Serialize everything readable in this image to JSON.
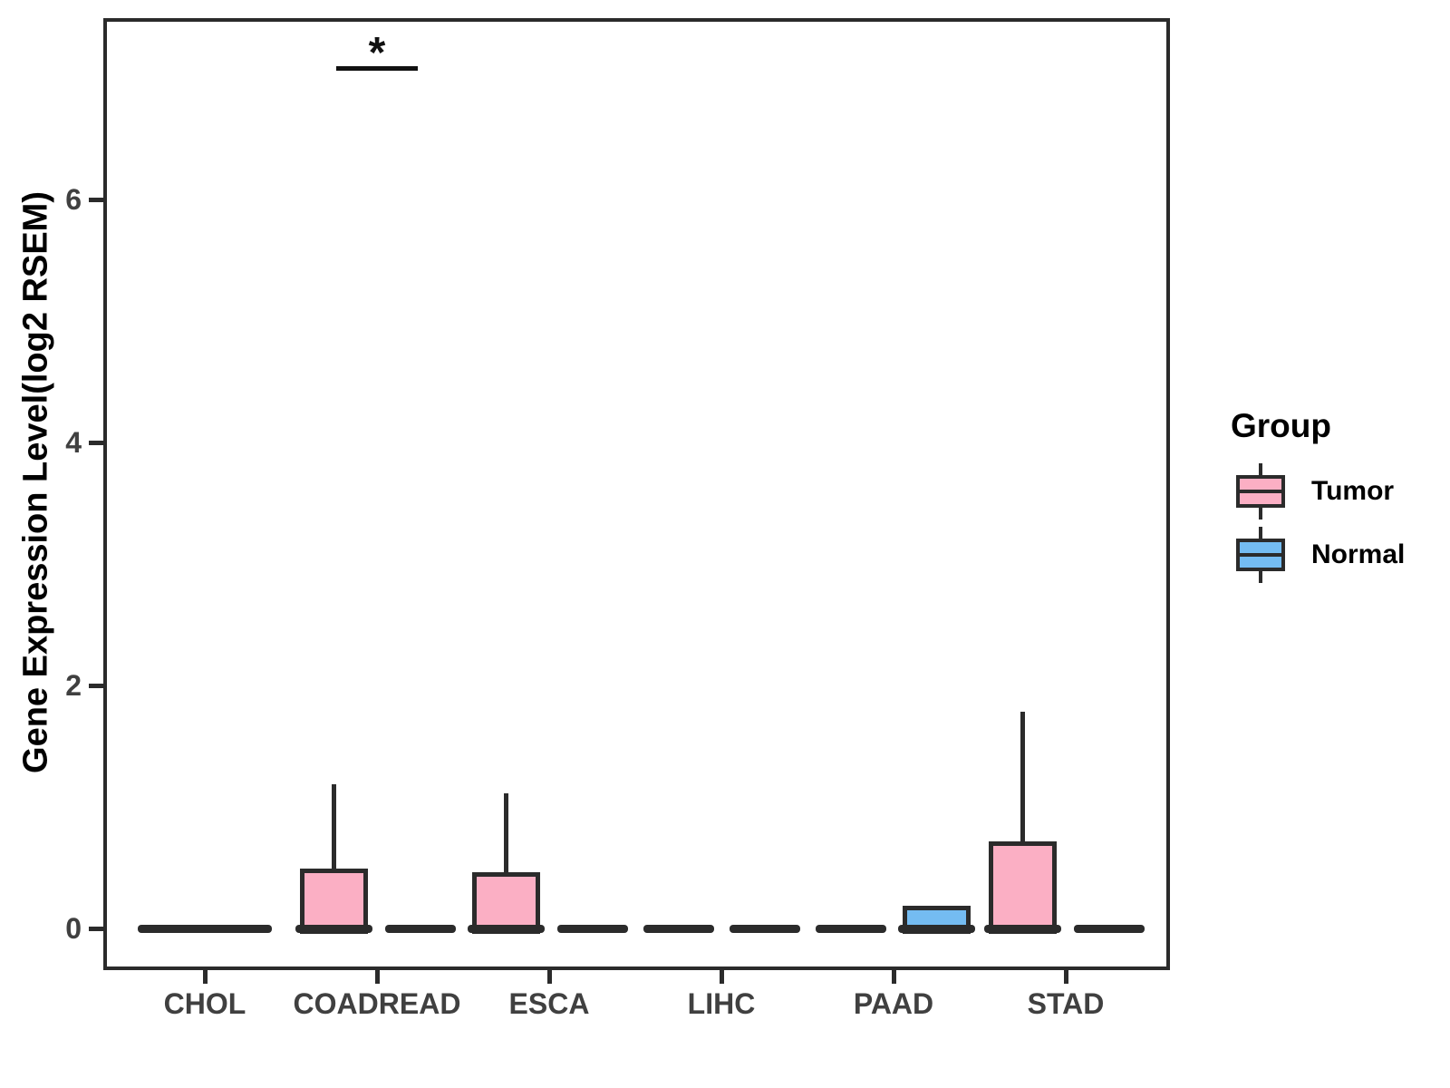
{
  "colors": {
    "tumor": "#FBAFC4",
    "normal": "#74BCF2",
    "box_border": "#2B2B2B",
    "axis_text": "#404040",
    "title_text": "#000000"
  },
  "legend": {
    "title": "Group",
    "items": [
      {
        "label": "Tumor",
        "color_key": "tumor"
      },
      {
        "label": "Normal",
        "color_key": "normal"
      }
    ]
  },
  "chart_data": {
    "type": "boxplot",
    "title": "",
    "xlabel": "",
    "ylabel": "Gene Expression Level(log2 RSEM)",
    "categories": [
      "CHOL",
      "COADREAD",
      "ESCA",
      "LIHC",
      "PAAD",
      "STAD"
    ],
    "groups": [
      "Tumor",
      "Normal"
    ],
    "yticks": [
      0,
      2,
      4,
      6
    ],
    "ylim": [
      -0.35,
      7.5
    ],
    "grid": "off",
    "legend_position": "right",
    "boxes": [
      {
        "category": "CHOL",
        "group": "Tumor",
        "full_width": true,
        "stats": {
          "min": 0,
          "q1": 0,
          "median": 0,
          "q3": 0,
          "max": 0
        }
      },
      {
        "category": "COADREAD",
        "group": "Tumor",
        "stats": {
          "min": 0,
          "q1": 0,
          "median": 0,
          "q3": 0.49,
          "max": 1.19
        }
      },
      {
        "category": "COADREAD",
        "group": "Normal",
        "stats": {
          "min": 0,
          "q1": 0,
          "median": 0,
          "q3": 0,
          "max": 0
        }
      },
      {
        "category": "ESCA",
        "group": "Tumor",
        "stats": {
          "min": 0,
          "q1": 0,
          "median": 0,
          "q3": 0.46,
          "max": 1.11
        }
      },
      {
        "category": "ESCA",
        "group": "Normal",
        "stats": {
          "min": 0,
          "q1": 0,
          "median": 0,
          "q3": 0,
          "max": 0
        }
      },
      {
        "category": "LIHC",
        "group": "Tumor",
        "stats": {
          "min": 0,
          "q1": 0,
          "median": 0,
          "q3": 0,
          "max": 0
        }
      },
      {
        "category": "LIHC",
        "group": "Normal",
        "stats": {
          "min": 0,
          "q1": 0,
          "median": 0,
          "q3": 0,
          "max": 0
        }
      },
      {
        "category": "PAAD",
        "group": "Tumor",
        "stats": {
          "min": 0,
          "q1": 0,
          "median": 0,
          "q3": 0,
          "max": 0
        }
      },
      {
        "category": "PAAD",
        "group": "Normal",
        "stats": {
          "min": 0,
          "q1": 0,
          "median": 0,
          "q3": 0.19,
          "max": 0.19
        }
      },
      {
        "category": "STAD",
        "group": "Tumor",
        "stats": {
          "min": 0,
          "q1": 0,
          "median": 0,
          "q3": 0.72,
          "max": 1.78
        }
      },
      {
        "category": "STAD",
        "group": "Normal",
        "stats": {
          "min": 0,
          "q1": 0,
          "median": 0,
          "q3": 0,
          "max": 0
        }
      }
    ],
    "annotations": [
      {
        "text": "*",
        "category": "COADREAD",
        "y": 7.1
      }
    ]
  }
}
